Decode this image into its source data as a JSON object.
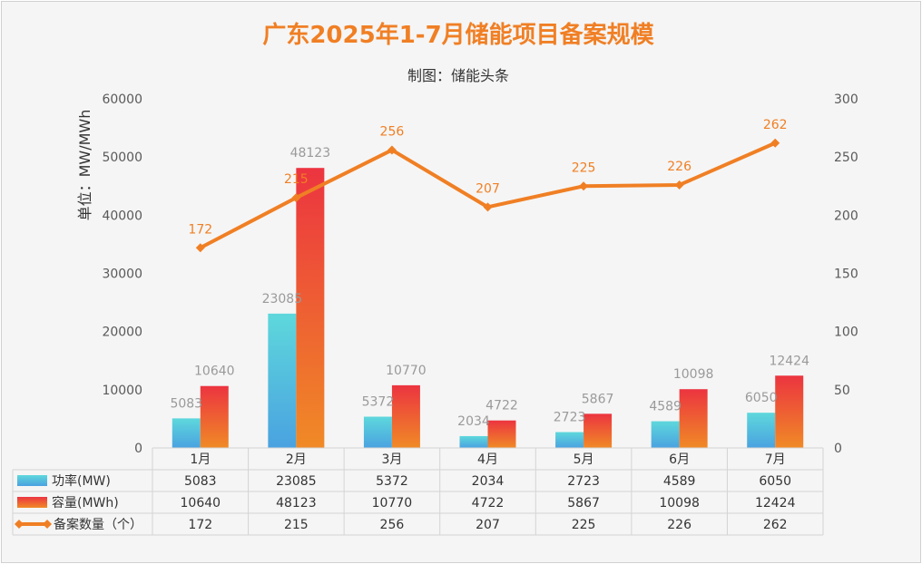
{
  "chart_data": {
    "type": "bar",
    "title": "广东2025年1-7月储能项目备案规模",
    "subtitle": "制图：储能头条",
    "ylabel": "单位：MW/MWh",
    "categories": [
      "1月",
      "2月",
      "3月",
      "4月",
      "5月",
      "6月",
      "7月"
    ],
    "ylim": [
      0,
      60000
    ],
    "y_ticks": [
      "0",
      "10000",
      "20000",
      "30000",
      "40000",
      "50000",
      "60000"
    ],
    "y2lim": [
      0,
      300
    ],
    "y2_ticks": [
      "0",
      "50",
      "100",
      "150",
      "200",
      "250",
      "300"
    ],
    "grid": false,
    "legend": "bottom data table",
    "series": [
      {
        "name": "功率(MW)",
        "kind": "bar",
        "axis": "left",
        "values": [
          5083,
          23085,
          5372,
          2034,
          2723,
          4589,
          6050
        ],
        "labels": [
          "5083",
          "23085",
          "5372",
          "2034",
          "2723",
          "4589",
          "6050"
        ]
      },
      {
        "name": "容量(MWh)",
        "kind": "bar",
        "axis": "left",
        "values": [
          10640,
          48123,
          10770,
          4722,
          5867,
          10098,
          12424
        ],
        "labels": [
          "10640",
          "48123",
          "10770",
          "4722",
          "5867",
          "10098",
          "12424"
        ]
      },
      {
        "name": "备案数量（个）",
        "kind": "line",
        "axis": "right",
        "values": [
          172,
          215,
          256,
          207,
          225,
          226,
          262
        ],
        "labels": [
          "172",
          "215",
          "256",
          "207",
          "225",
          "226",
          "262"
        ]
      }
    ],
    "colors": {
      "title": "#f07f24",
      "power_top": "#5ed8dc",
      "power_bottom": "#4aa2e0",
      "capacity_top": "#ec3440",
      "capacity_bottom": "#f08a26",
      "line": "#f07f24"
    }
  }
}
